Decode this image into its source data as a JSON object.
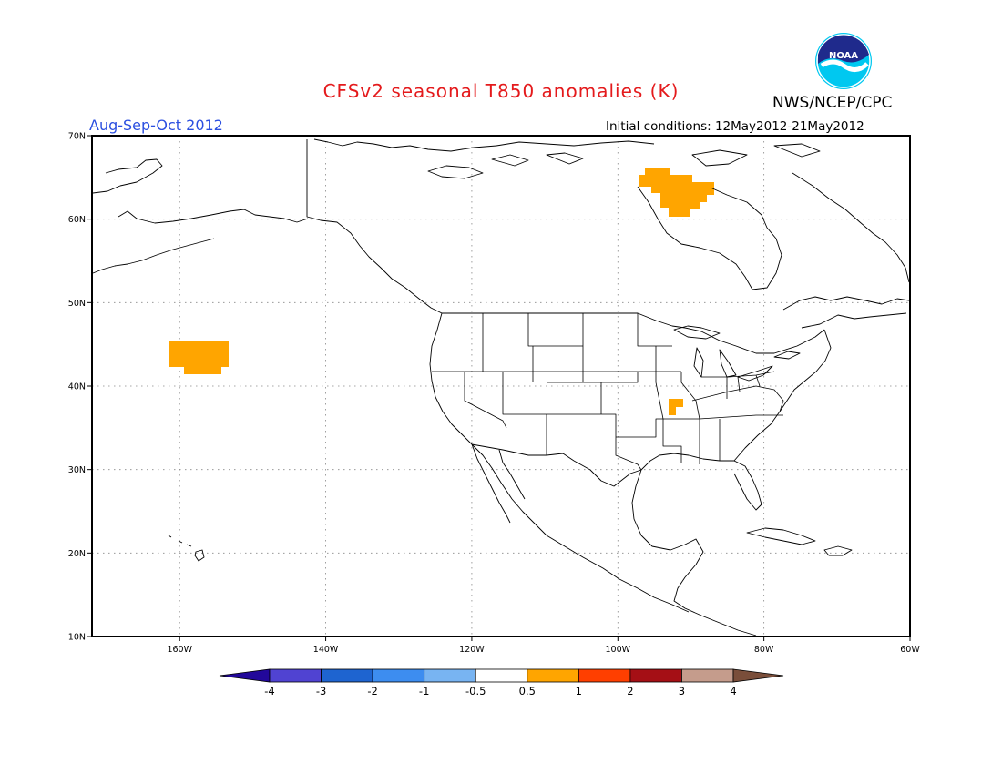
{
  "title": "CFSv2 seasonal T850 anomalies (K)",
  "agency": "NWS/NCEP/CPC",
  "logo_text": "NOAA",
  "season": "Aug-Sep-Oct 2012",
  "initial_conditions": "Initial conditions: 12May2012-21May2012",
  "map": {
    "lon_range": [
      -172,
      -60
    ],
    "lat_range": [
      10,
      70
    ],
    "lon_ticks": [
      {
        "value": -160,
        "label": "160W"
      },
      {
        "value": -140,
        "label": "140W"
      },
      {
        "value": -120,
        "label": "120W"
      },
      {
        "value": -100,
        "label": "100W"
      },
      {
        "value": -80,
        "label": "80W"
      },
      {
        "value": -60,
        "label": "60W"
      }
    ],
    "lat_ticks": [
      {
        "value": 10,
        "label": "10N"
      },
      {
        "value": 20,
        "label": "20N"
      },
      {
        "value": 30,
        "label": "30N"
      },
      {
        "value": 40,
        "label": "40N"
      },
      {
        "value": 50,
        "label": "50N"
      },
      {
        "value": 60,
        "label": "60N"
      },
      {
        "value": 70,
        "label": "70N"
      }
    ],
    "grid": true,
    "anomaly_regions": [
      {
        "name": "North Pacific",
        "category": "0.5 to 1",
        "color": "#ffa500"
      },
      {
        "name": "Hudson Bay",
        "category": "0.5 to 1",
        "color": "#ffa500"
      },
      {
        "name": "Missouri",
        "category": "0.5 to 1",
        "color": "#ffa500"
      }
    ]
  },
  "colorbar": {
    "labels": [
      "-4",
      "-3",
      "-2",
      "-1",
      "-0.5",
      "0.5",
      "1",
      "2",
      "3",
      "4"
    ],
    "colors": [
      "#22089a",
      "#5043d2",
      "#1e64d0",
      "#3d8df0",
      "#78b4f2",
      "#ffffff",
      "#ffa500",
      "#ff3f00",
      "#a50f15",
      "#c59c8c",
      "#7a4e3a"
    ]
  }
}
